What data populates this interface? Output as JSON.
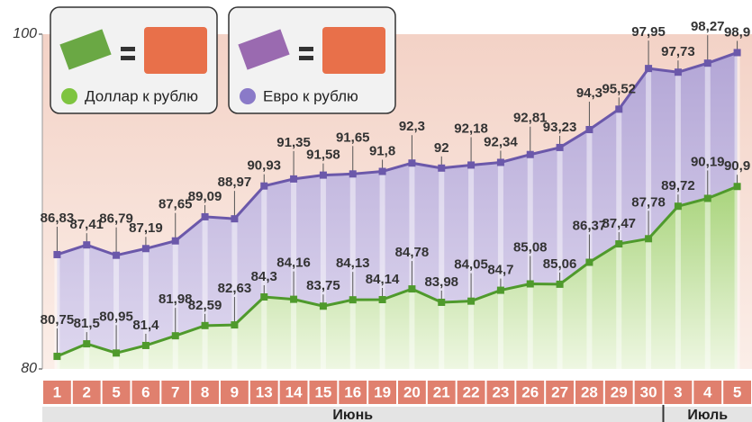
{
  "chart_data": {
    "type": "line",
    "categories": [
      "1",
      "2",
      "5",
      "6",
      "7",
      "8",
      "9",
      "13",
      "14",
      "15",
      "16",
      "19",
      "20",
      "21",
      "22",
      "23",
      "26",
      "27",
      "28",
      "29",
      "30",
      "3",
      "4",
      "5"
    ],
    "x_groups": [
      {
        "label": "Июнь",
        "count": 21
      },
      {
        "label": "Июль",
        "count": 3
      }
    ],
    "series": [
      {
        "name": "Евро к рублю",
        "color": "#6b58aa",
        "fill": "#b8acd8",
        "values": [
          86.83,
          87.41,
          86.79,
          87.19,
          87.65,
          89.09,
          88.97,
          90.93,
          91.35,
          91.58,
          91.65,
          91.8,
          92.3,
          92,
          92.18,
          92.34,
          92.81,
          93.23,
          94.3,
          95.52,
          97.95,
          97.73,
          98.27,
          98.9
        ],
        "value_labels": [
          "86,83",
          "87,41",
          "86,79",
          "87,19",
          "87,65",
          "89,09",
          "88,97",
          "90,93",
          "91,35",
          "91,58",
          "91,65",
          "91,8",
          "92,3",
          "92",
          "92,18",
          "92,34",
          "92,81",
          "93,23",
          "94,3",
          "95,52",
          "97,95",
          "97,73",
          "98,27",
          "98,9"
        ]
      },
      {
        "name": "Доллар к рублю",
        "color": "#4f9a2c",
        "fill": "#a9d47c",
        "values": [
          80.75,
          81.5,
          80.95,
          81.4,
          81.98,
          82.59,
          82.63,
          84.3,
          84.16,
          83.75,
          84.13,
          84.14,
          84.78,
          83.98,
          84.05,
          84.7,
          85.08,
          85.06,
          86.37,
          87.47,
          87.78,
          89.72,
          90.19,
          90.9
        ],
        "value_labels": [
          "80,75",
          "81,5",
          "80,95",
          "81,4",
          "81,98",
          "82,59",
          "82,63",
          "84,3",
          "84,16",
          "83,75",
          "84,13",
          "84,14",
          "84,78",
          "83,98",
          "84,05",
          "84,7",
          "85,08",
          "85,06",
          "86,37",
          "87,47",
          "87,78",
          "89,72",
          "90,19",
          "90,9"
        ]
      }
    ],
    "ylim": [
      80,
      100
    ],
    "yticks": [
      80,
      100
    ]
  }
}
